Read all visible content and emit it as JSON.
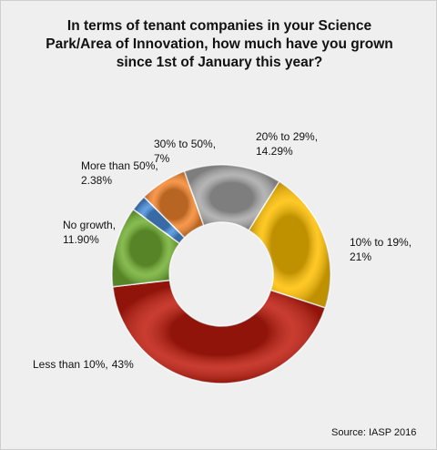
{
  "chart_data": {
    "type": "donut",
    "title": "In terms of tenant companies in your Science Park/Area of Innovation, how much have you grown since 1st of January this year?",
    "categories": [
      "10% to 19%,",
      "Less than 10%,",
      "No growth,",
      "More than 50%,",
      "30% to 50%,",
      "20% to 29%,"
    ],
    "values": [
      21,
      43,
      11.9,
      2.38,
      7,
      14.29
    ],
    "value_labels": [
      "21%",
      "43%",
      "11.90%",
      "2.38%",
      "7%",
      "14.29%"
    ],
    "colors": [
      "#ffc000",
      "#c01a0c",
      "#72b032",
      "#4a8fdc",
      "#f5862e",
      "#a8a8a8"
    ],
    "source": "Source: IASP 2016"
  }
}
